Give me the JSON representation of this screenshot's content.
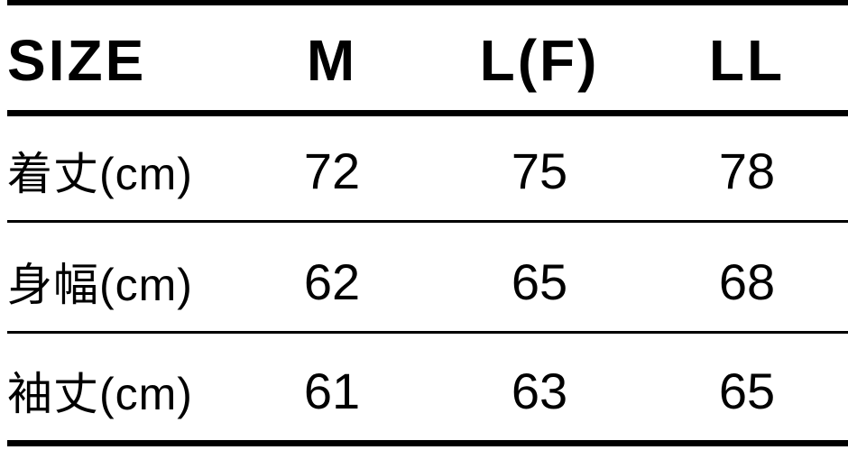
{
  "table": {
    "headers": [
      "SIZE",
      "M",
      "L(F)",
      "LL"
    ],
    "rows": [
      {
        "label": "着丈(cm)",
        "values": [
          "72",
          "75",
          "78"
        ]
      },
      {
        "label": "身幅(cm)",
        "values": [
          "62",
          "65",
          "68"
        ]
      },
      {
        "label": "袖丈(cm)",
        "values": [
          "61",
          "63",
          "65"
        ]
      }
    ]
  }
}
